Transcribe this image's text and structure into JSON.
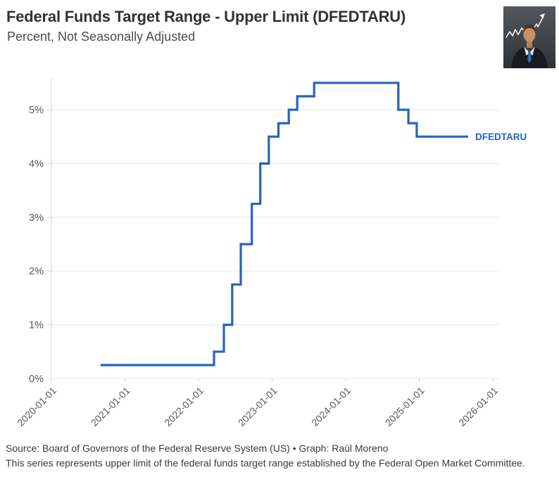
{
  "header": {
    "title": "Federal Funds Target Range - Upper Limit (DFEDTARU)",
    "subtitle": "Percent, Not Seasonally Adjusted"
  },
  "footer": {
    "source_line": "Source: Board of Governors of the Federal Reserve System (US) • Graph: Raúl Moreno",
    "note_line": "This series represents upper limit of the federal funds target range established by the Federal Open Market Committee."
  },
  "chart_data": {
    "type": "line",
    "line_style": "step-after",
    "title": "Federal Funds Target Range - Upper Limit (DFEDTARU)",
    "subtitle": "Percent, Not Seasonally Adjusted",
    "ylabel": "Percent",
    "grid": "horizontal-only",
    "legend_position": "end-of-line-label",
    "end_label": "DFEDTARU",
    "line_color": "#2563c0",
    "grid_color": "#e8e8e8",
    "axis_color": "#d4d4d4",
    "tick_label_color": "#595959",
    "xlim": [
      "2020-01-01",
      "2026-02-01"
    ],
    "ylim": [
      0,
      5.65
    ],
    "x_ticks": [
      "2020-01-01",
      "2021-01-01",
      "2022-01-01",
      "2023-01-01",
      "2024-01-01",
      "2025-01-01",
      "2026-01-01"
    ],
    "y_ticks": [
      {
        "value": 0,
        "label": "0%"
      },
      {
        "value": 1,
        "label": "1%"
      },
      {
        "value": 2,
        "label": "2%"
      },
      {
        "value": 3,
        "label": "3%"
      },
      {
        "value": 4,
        "label": "4%"
      },
      {
        "value": 5,
        "label": "5%"
      }
    ],
    "series": [
      {
        "name": "DFEDTARU",
        "points": [
          {
            "date": "2020-09-01",
            "value": 0.25
          },
          {
            "date": "2022-03-17",
            "value": 0.5
          },
          {
            "date": "2022-05-05",
            "value": 1.0
          },
          {
            "date": "2022-06-16",
            "value": 1.75
          },
          {
            "date": "2022-07-28",
            "value": 2.5
          },
          {
            "date": "2022-09-22",
            "value": 3.25
          },
          {
            "date": "2022-11-03",
            "value": 4.0
          },
          {
            "date": "2022-12-15",
            "value": 4.5
          },
          {
            "date": "2023-02-02",
            "value": 4.75
          },
          {
            "date": "2023-03-23",
            "value": 5.0
          },
          {
            "date": "2023-05-04",
            "value": 5.25
          },
          {
            "date": "2023-07-27",
            "value": 5.5
          },
          {
            "date": "2024-09-19",
            "value": 5.0
          },
          {
            "date": "2024-11-08",
            "value": 4.75
          },
          {
            "date": "2024-12-19",
            "value": 4.5
          },
          {
            "date": "2025-08-31",
            "value": 4.5
          }
        ]
      }
    ]
  }
}
